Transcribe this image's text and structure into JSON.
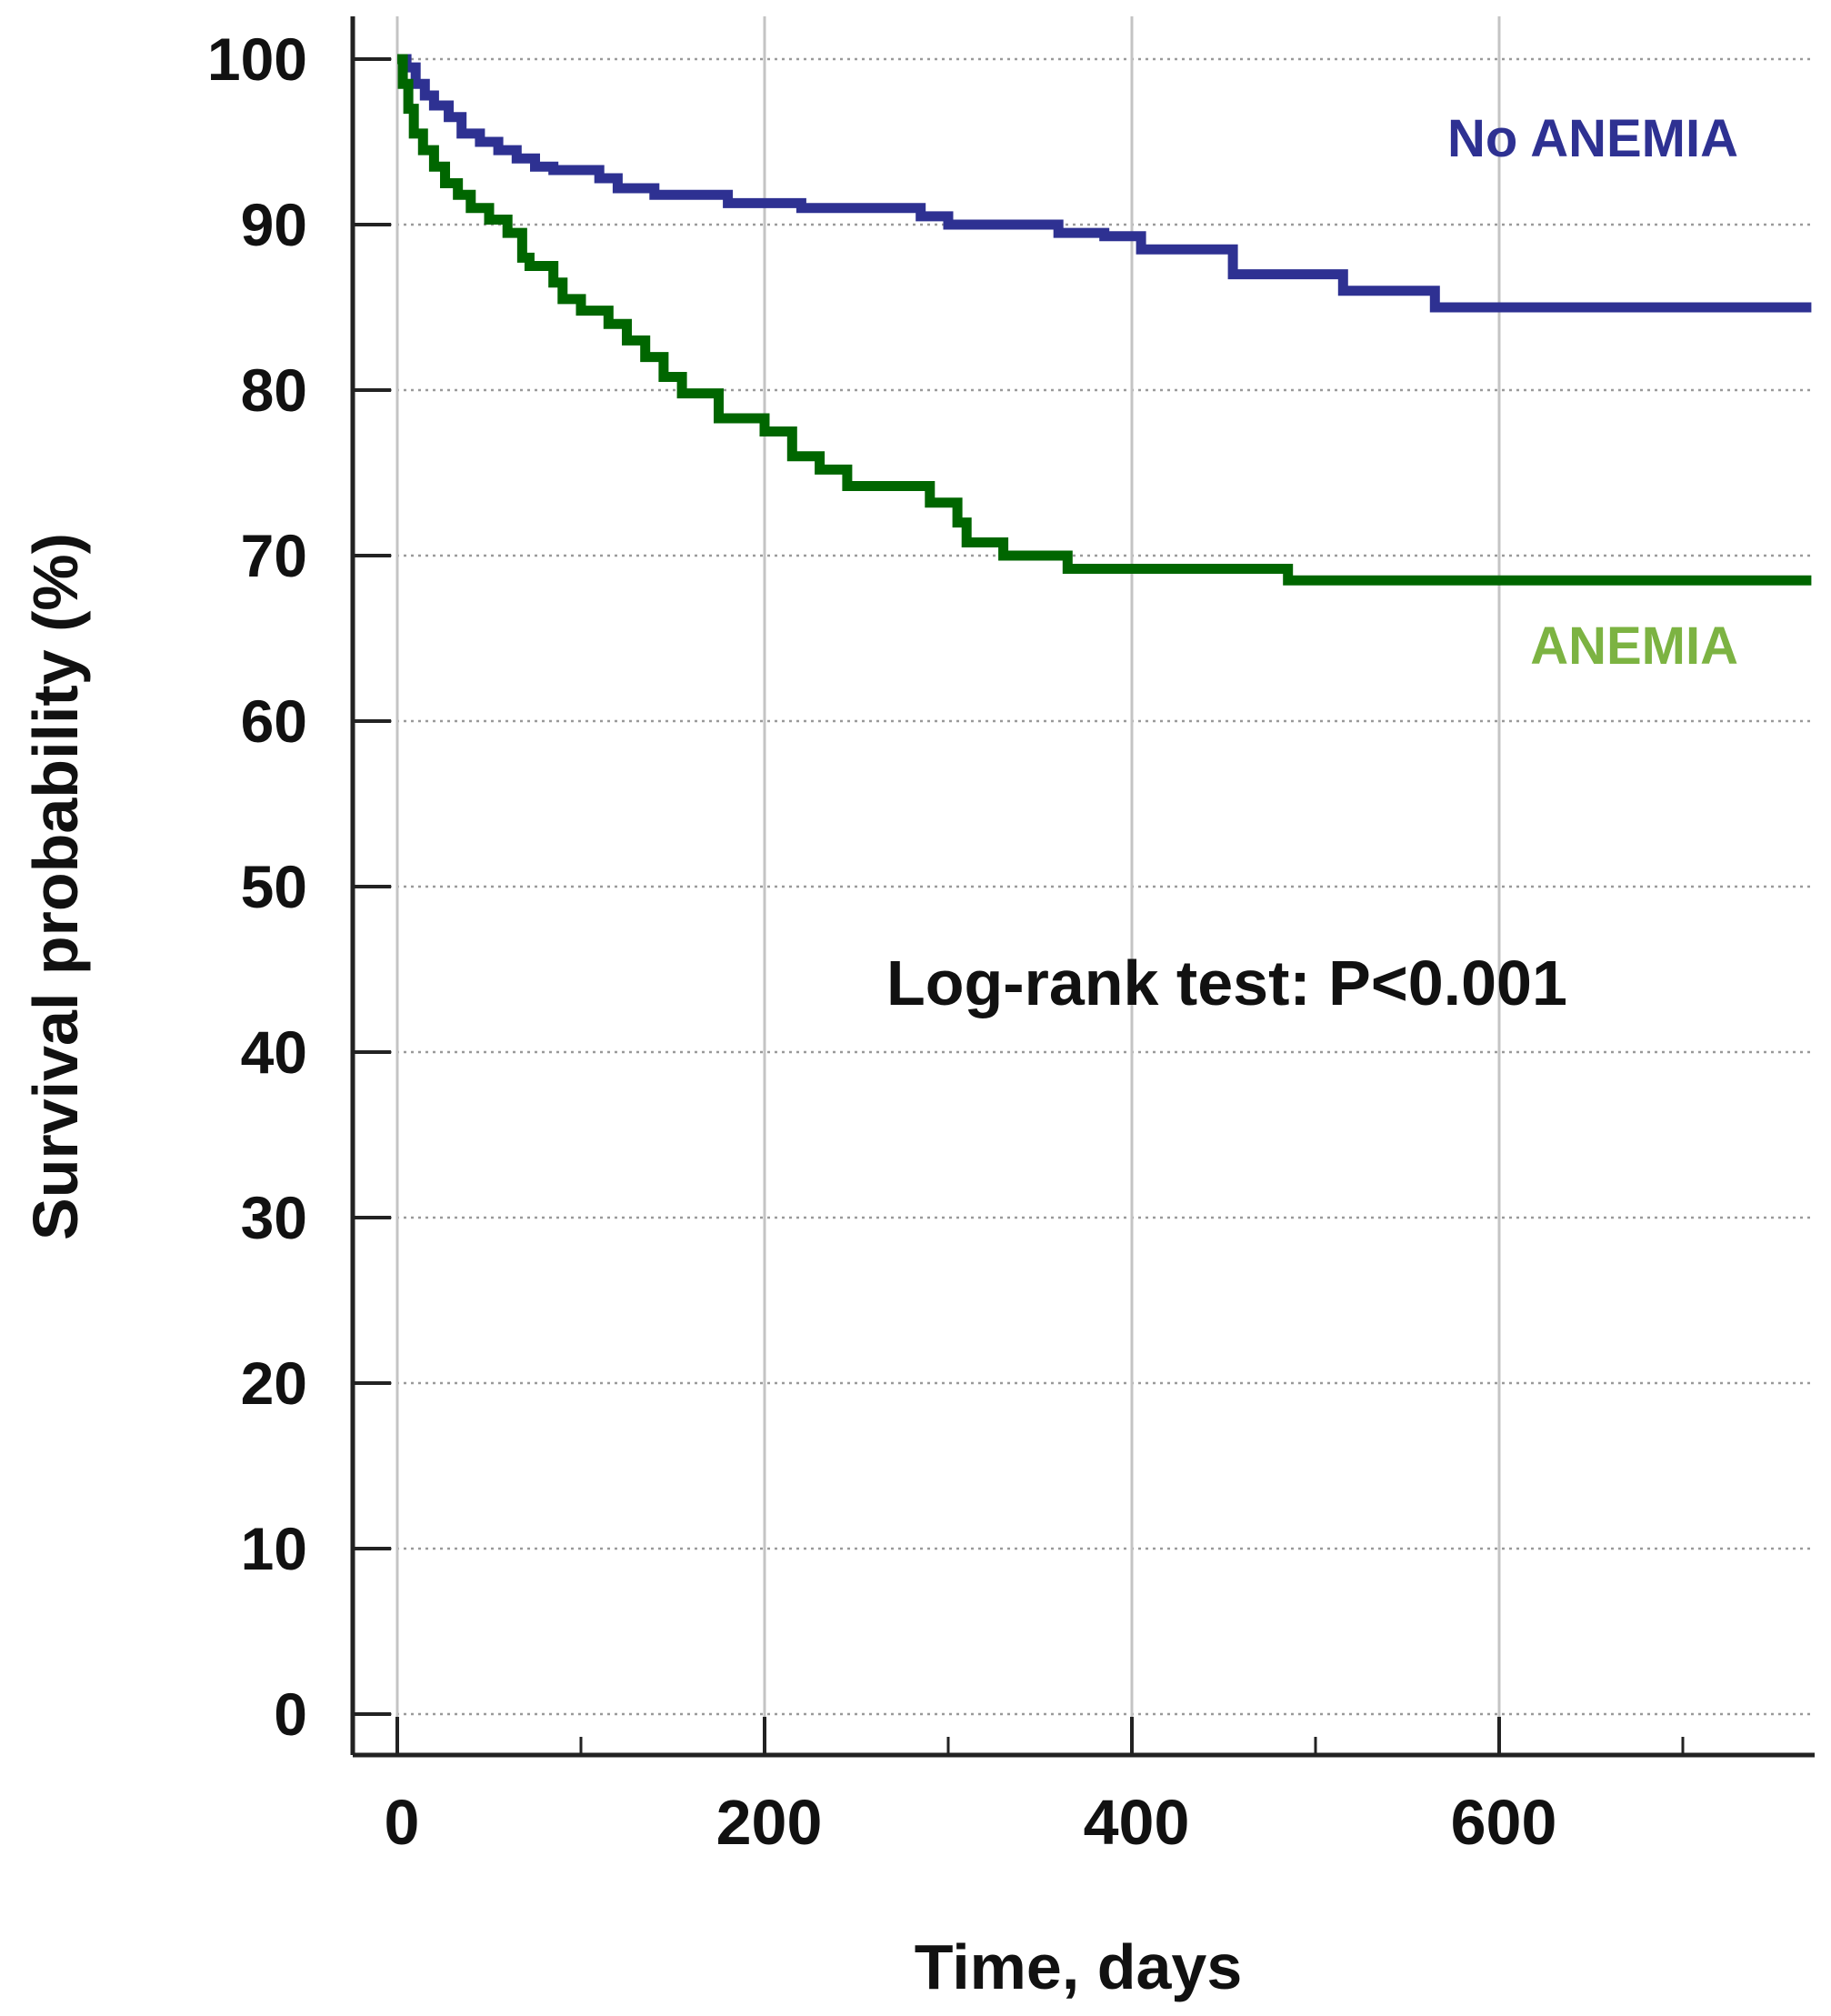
{
  "chart_data": {
    "type": "line",
    "subtype": "kaplan-meier step",
    "title": "",
    "xlabel": "Time, days",
    "ylabel": "Survival probability (%)",
    "xlim": [
      0,
      770
    ],
    "ylim": [
      0,
      100
    ],
    "x_ticks": [
      0,
      200,
      400,
      600
    ],
    "x_minor_ticks": [
      100,
      300,
      500,
      700
    ],
    "y_ticks": [
      0,
      10,
      20,
      30,
      40,
      50,
      60,
      70,
      80,
      90,
      100
    ],
    "grid": true,
    "annotation": "Log-rank test: P<0.001",
    "series": [
      {
        "name": "No ANEMIA",
        "color": "#2e3192",
        "label_color": "#2e3192",
        "points": [
          [
            0,
            100
          ],
          [
            5,
            99.5
          ],
          [
            10,
            98.5
          ],
          [
            15,
            97.8
          ],
          [
            20,
            97.2
          ],
          [
            28,
            96.5
          ],
          [
            35,
            95.5
          ],
          [
            45,
            95.0
          ],
          [
            55,
            94.5
          ],
          [
            65,
            94.0
          ],
          [
            75,
            93.5
          ],
          [
            85,
            93.3
          ],
          [
            110,
            92.8
          ],
          [
            120,
            92.2
          ],
          [
            140,
            91.8
          ],
          [
            180,
            91.3
          ],
          [
            220,
            91.0
          ],
          [
            285,
            90.5
          ],
          [
            300,
            90.0
          ],
          [
            360,
            89.5
          ],
          [
            385,
            89.3
          ],
          [
            405,
            88.5
          ],
          [
            455,
            87.0
          ],
          [
            515,
            86.0
          ],
          [
            565,
            85.0
          ],
          [
            770,
            85.0
          ]
        ]
      },
      {
        "name": "ANEMIA",
        "color": "#006600",
        "label_color": "#7cb342",
        "points": [
          [
            0,
            100
          ],
          [
            3,
            98.5
          ],
          [
            6,
            97
          ],
          [
            9,
            95.5
          ],
          [
            14,
            94.5
          ],
          [
            20,
            93.5
          ],
          [
            26,
            92.5
          ],
          [
            33,
            91.8
          ],
          [
            40,
            91.0
          ],
          [
            50,
            90.3
          ],
          [
            60,
            89.5
          ],
          [
            68,
            88.0
          ],
          [
            72,
            87.5
          ],
          [
            85,
            86.5
          ],
          [
            90,
            85.5
          ],
          [
            100,
            84.8
          ],
          [
            115,
            84.0
          ],
          [
            125,
            83.0
          ],
          [
            135,
            82.0
          ],
          [
            145,
            80.8
          ],
          [
            155,
            79.8
          ],
          [
            175,
            78.3
          ],
          [
            200,
            77.5
          ],
          [
            215,
            76.0
          ],
          [
            230,
            75.2
          ],
          [
            245,
            74.2
          ],
          [
            290,
            73.2
          ],
          [
            305,
            72.0
          ],
          [
            310,
            70.8
          ],
          [
            330,
            70.0
          ],
          [
            365,
            69.2
          ],
          [
            485,
            68.5
          ],
          [
            770,
            68.5
          ]
        ]
      }
    ]
  }
}
